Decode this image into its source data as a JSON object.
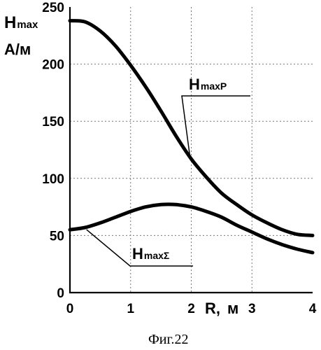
{
  "chart_data": {
    "type": "line",
    "x_axis": {
      "label": "R,",
      "unit": "м",
      "range": [
        0,
        4
      ],
      "ticks": [
        "0",
        "1",
        "2",
        "3",
        "4"
      ]
    },
    "y_axis": {
      "label_line1": "H",
      "label_line1_sub": "max",
      "label_line2": "А/м",
      "range": [
        0,
        250
      ],
      "ticks": [
        "0",
        "50",
        "100",
        "150",
        "200",
        "250"
      ]
    },
    "grid": true,
    "series": [
      {
        "name": "H",
        "name_sub": "maxP",
        "x": [
          0,
          0.25,
          0.5,
          0.75,
          1.0,
          1.25,
          1.5,
          1.75,
          2.0,
          2.25,
          2.5,
          2.75,
          3.0,
          3.25,
          3.5,
          3.75,
          4.0
        ],
        "y": [
          238,
          237,
          229,
          216,
          199,
          180,
          159,
          137,
          117,
          101,
          87,
          77,
          68,
          61,
          55,
          51,
          50
        ]
      },
      {
        "name": "H",
        "name_sub": "maxΣ",
        "x": [
          0,
          0.25,
          0.5,
          0.75,
          1.0,
          1.25,
          1.5,
          1.75,
          2.0,
          2.25,
          2.5,
          2.75,
          3.0,
          3.25,
          3.5,
          3.75,
          4.0
        ],
        "y": [
          55,
          57,
          61,
          66,
          71,
          75,
          77,
          77,
          75,
          71,
          66,
          59,
          53,
          47,
          42,
          38,
          35
        ]
      }
    ]
  },
  "caption": "Фиг.22"
}
